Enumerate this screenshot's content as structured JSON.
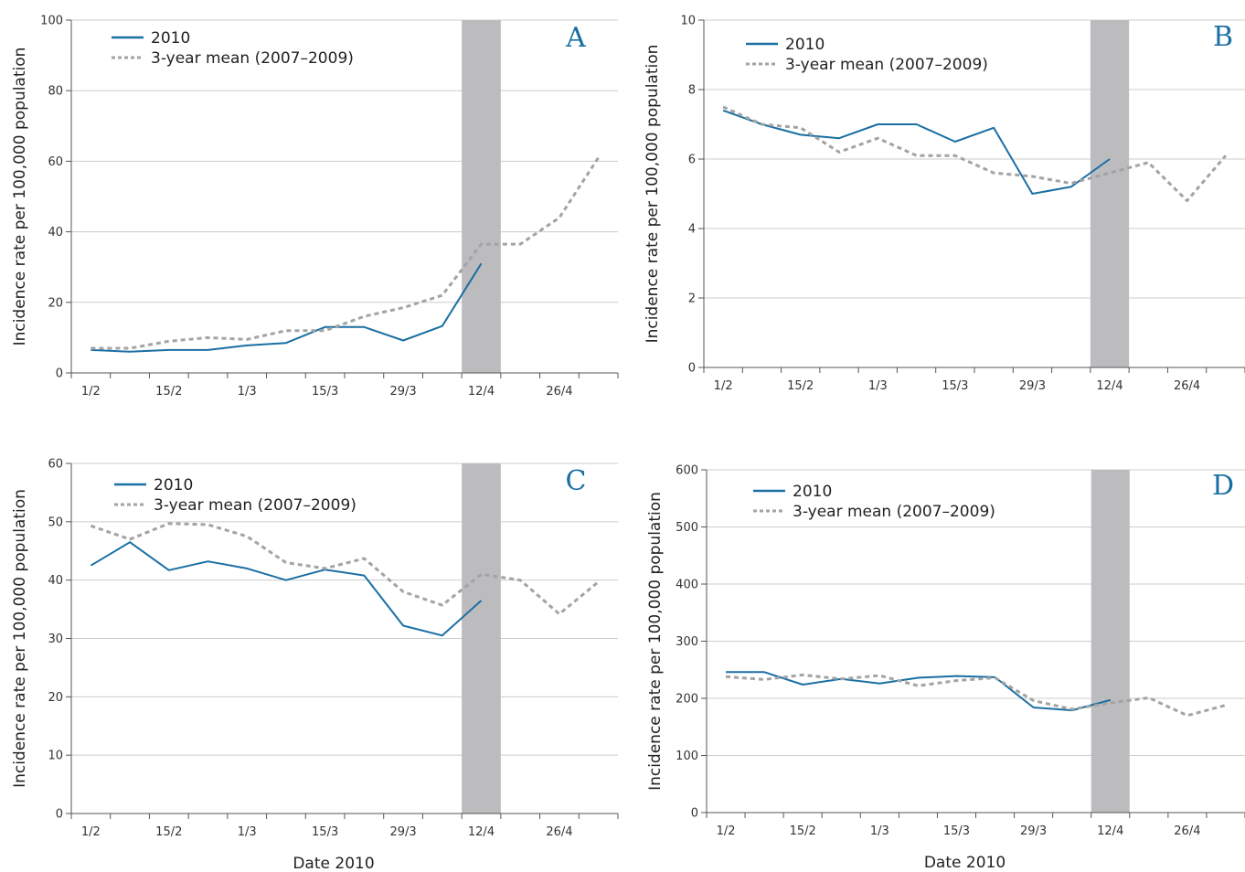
{
  "colors": {
    "line2010": "#1a6fa3",
    "mean": "#a3a3a3",
    "shade": "#bcbcbf",
    "grid": "#cccccc",
    "axis": "#555555",
    "letter": "#1a6fa3"
  },
  "legend": {
    "label_2010": "2010",
    "label_mean": "3-year mean (2007–2009)"
  },
  "common": {
    "ylabel": "Incidence rate per 100,000 population",
    "xlabel": "Date 2010",
    "x_tick_labels": [
      "1/2",
      "15/2",
      "1/3",
      "15/3",
      "29/3",
      "12/4",
      "26/4"
    ]
  },
  "chart_data": [
    {
      "panel": "A",
      "type": "line",
      "ylim": [
        0,
        100
      ],
      "y_ticks": [
        0,
        20,
        40,
        60,
        80,
        100
      ],
      "show_xlabel": false,
      "shaded_week_index": 10,
      "series": [
        {
          "name": "2010",
          "style": "solid",
          "values": [
            6.5,
            6,
            6.5,
            6.5,
            7.8,
            8.5,
            13,
            13,
            9.2,
            13.3,
            31
          ]
        },
        {
          "name": "3-year mean (2007–2009)",
          "style": "dashed",
          "values": [
            7,
            7,
            9,
            10,
            9.5,
            12,
            12,
            16,
            18.5,
            22,
            36.5,
            36.5,
            44,
            61
          ]
        }
      ]
    },
    {
      "panel": "B",
      "type": "line",
      "ylim": [
        0,
        10
      ],
      "y_ticks": [
        0,
        2,
        4,
        6,
        8,
        10
      ],
      "show_xlabel": false,
      "shaded_week_index": 10,
      "series": [
        {
          "name": "2010",
          "style": "solid",
          "values": [
            7.4,
            7.0,
            6.7,
            6.6,
            7.0,
            7.0,
            6.5,
            6.9,
            5.0,
            5.2,
            6.0
          ]
        },
        {
          "name": "3-year mean (2007–2009)",
          "style": "dashed",
          "values": [
            7.5,
            7.0,
            6.9,
            6.2,
            6.6,
            6.1,
            6.1,
            5.6,
            5.5,
            5.3,
            5.6,
            5.9,
            4.8,
            6.1
          ]
        }
      ]
    },
    {
      "panel": "C",
      "type": "line",
      "ylim": [
        0,
        60
      ],
      "y_ticks": [
        0,
        10,
        20,
        30,
        40,
        50,
        60
      ],
      "show_xlabel": true,
      "shaded_week_index": 10,
      "series": [
        {
          "name": "2010",
          "style": "solid",
          "values": [
            42.5,
            46.5,
            41.7,
            43.2,
            42,
            40,
            41.8,
            40.8,
            32.2,
            30.5,
            36.5
          ]
        },
        {
          "name": "3-year mean (2007–2009)",
          "style": "dashed",
          "values": [
            49.3,
            47,
            49.7,
            49.5,
            47.5,
            43,
            42,
            43.7,
            38,
            35.7,
            41,
            40,
            34.2,
            39.7
          ]
        }
      ]
    },
    {
      "panel": "D",
      "type": "line",
      "ylim": [
        0,
        600
      ],
      "y_ticks": [
        0,
        100,
        200,
        300,
        400,
        500,
        600
      ],
      "show_xlabel": true,
      "shaded_week_index": 10,
      "series": [
        {
          "name": "2010",
          "style": "solid",
          "values": [
            246,
            246,
            224,
            234,
            226,
            236,
            239,
            237,
            184,
            179,
            197
          ]
        },
        {
          "name": "3-year mean (2007–2009)",
          "style": "dashed",
          "values": [
            238,
            233,
            241,
            234,
            240,
            222,
            231,
            236,
            196,
            181,
            192,
            201,
            170,
            188
          ]
        }
      ]
    }
  ]
}
